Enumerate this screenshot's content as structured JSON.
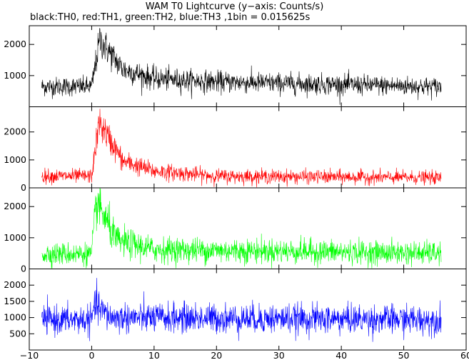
{
  "title": "WAM T0 Lightcurve (y−axis: Counts/s)",
  "subtitle": "black:TH0, red:TH1, green:TH2, blue:TH3 ,1bin = 0.015625s",
  "chart_data": {
    "type": "line",
    "x_axis": {
      "range": [
        -10,
        60
      ],
      "ticks": [
        -10,
        0,
        10,
        20,
        30,
        40,
        50,
        60
      ],
      "tick_labels": [
        "−10",
        "0",
        "10",
        "20",
        "30",
        "40",
        "50",
        "60"
      ]
    },
    "data_x_range": [
      -8,
      56
    ],
    "bin_size_s": 0.015625,
    "panels": [
      {
        "series": "TH0",
        "color": "#000000",
        "ylim": [
          0,
          2600
        ],
        "yticks": [
          1000,
          2000
        ],
        "baseline": 620,
        "noise": 150,
        "peak": {
          "t": 1.3,
          "value": 2150
        },
        "decay_profile": [
          [
            -8,
            650
          ],
          [
            0,
            650
          ],
          [
            1.3,
            2150
          ],
          [
            5,
            1200
          ],
          [
            10,
            900
          ],
          [
            20,
            800
          ],
          [
            56,
            640
          ]
        ]
      },
      {
        "series": "TH1",
        "color": "#ff0000",
        "ylim": [
          0,
          2900
        ],
        "yticks": [
          0,
          1000,
          2000
        ],
        "baseline": 380,
        "noise": 120,
        "peak": {
          "t": 1.2,
          "value": 2350
        },
        "decay_profile": [
          [
            -8,
            420
          ],
          [
            0,
            420
          ],
          [
            1.2,
            2350
          ],
          [
            5,
            950
          ],
          [
            10,
            600
          ],
          [
            20,
            420
          ],
          [
            56,
            360
          ]
        ]
      },
      {
        "series": "TH2",
        "color": "#00ff00",
        "ylim": [
          0,
          2600
        ],
        "yticks": [
          0,
          1000,
          2000
        ],
        "baseline": 480,
        "noise": 180,
        "peak": {
          "t": 0.8,
          "value": 2150
        },
        "decay_profile": [
          [
            -8,
            480
          ],
          [
            0,
            480
          ],
          [
            0.8,
            2150
          ],
          [
            4,
            900
          ],
          [
            10,
            620
          ],
          [
            56,
            500
          ]
        ]
      },
      {
        "series": "TH3",
        "color": "#0000ff",
        "ylim": [
          0,
          2500
        ],
        "yticks": [
          500,
          1000,
          1500,
          2000
        ],
        "baseline": 930,
        "noise": 220,
        "peak": {
          "t": 0.5,
          "value": 1400
        },
        "decay_profile": [
          [
            -8,
            930
          ],
          [
            0,
            930
          ],
          [
            0.5,
            1400
          ],
          [
            3,
            1000
          ],
          [
            56,
            930
          ]
        ]
      }
    ]
  }
}
